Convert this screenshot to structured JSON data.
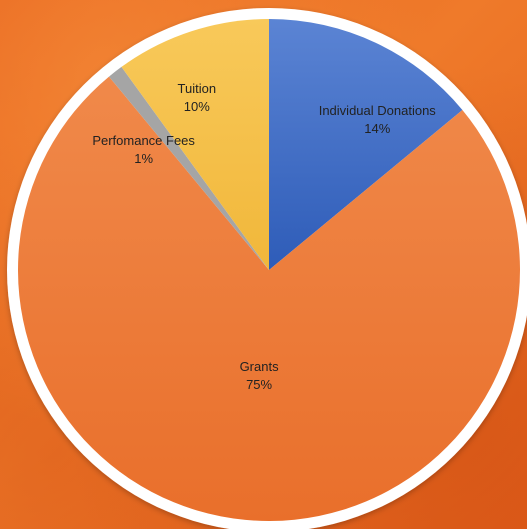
{
  "chart_data": {
    "type": "pie",
    "title": "",
    "start": "top",
    "direction": "clockwise",
    "legend": "none",
    "slices": [
      {
        "label": "Individual Donations",
        "value": 14,
        "value_label": "14%",
        "color": "#4472c4"
      },
      {
        "label": "Grants",
        "value": 75,
        "value_label": "75%",
        "color": "#ed7d31"
      },
      {
        "label": "Perfomance Fees",
        "value": 1,
        "value_label": "1%",
        "color": "#a5a5a5"
      },
      {
        "label": "Tuition",
        "value": 10,
        "value_label": "10%",
        "color": "#ffc000"
      }
    ]
  },
  "colors": {
    "background": "#e8651e",
    "ring": "#ffffff"
  }
}
